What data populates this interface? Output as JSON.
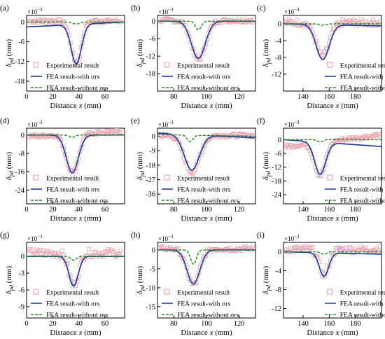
{
  "colors": {
    "experimental": "#e89aa6",
    "with_rs": "#1f3f9e",
    "without_rs": "#1e8c1e"
  },
  "chart_data": [
    {
      "panel": "(a)",
      "type": "line",
      "xlim": [
        0,
        75
      ],
      "ylim": [
        -21,
        2
      ],
      "xticks": [
        0,
        20,
        40,
        60
      ],
      "yticks": [
        0,
        -6,
        -12,
        -18
      ],
      "xlabel": "Distance x (mm)",
      "ylabel": "δpd (mm)",
      "y_multiplier": "×10−3",
      "legend_position": "bottom-left",
      "series": [
        {
          "name": "Experimental result",
          "type": "scatter",
          "center": 38,
          "depth": -12.8,
          "width": 5.5,
          "x_range": [
            2,
            72
          ],
          "baseline_slope": 0,
          "offset": 0.3,
          "noise": 0.6
        },
        {
          "name": "FEA result-with σrs",
          "type": "line",
          "center": 38,
          "depth": -12.0,
          "width": 5.5,
          "x_range": [
            0,
            75
          ],
          "baseline_start": -1.5,
          "baseline_end": 0
        },
        {
          "name": "FEA result-without σrs",
          "type": "line",
          "style": "dashed",
          "center": 38,
          "depth": -0.6,
          "width": 4,
          "x_range": [
            0,
            75
          ],
          "baseline_start": 0,
          "baseline_end": 0
        }
      ]
    },
    {
      "panel": "(b)",
      "type": "line",
      "xlim": [
        70,
        130
      ],
      "ylim": [
        -24,
        2
      ],
      "xticks": [
        80,
        100,
        120
      ],
      "yticks": [
        0,
        -6,
        -12,
        -18
      ],
      "xlabel": "Distance x (mm)",
      "ylabel": "δpd (mm)",
      "y_multiplier": "×10−3",
      "legend_position": "bottom-left",
      "series": [
        {
          "name": "Experimental result",
          "type": "scatter",
          "center": 95,
          "depth": -13.5,
          "width": 6,
          "x_range": [
            71,
            129
          ],
          "baseline_slope": 0,
          "offset": 0.3,
          "noise": 0.7
        },
        {
          "name": "FEA result-with σrs",
          "type": "line",
          "center": 95,
          "depth": -12.8,
          "width": 6,
          "x_range": [
            70,
            130
          ],
          "baseline_start": 0,
          "baseline_end": 0
        },
        {
          "name": "FEA result-without σrs",
          "type": "line",
          "style": "dashed",
          "center": 95,
          "depth": -3.0,
          "width": 2.5,
          "x_range": [
            70,
            130
          ],
          "baseline_start": 0,
          "baseline_end": 0
        }
      ]
    },
    {
      "panel": "(c)",
      "type": "line",
      "xlim": [
        125,
        200
      ],
      "ylim": [
        -16,
        2
      ],
      "xticks": [
        140,
        160,
        180
      ],
      "yticks": [
        0,
        -4,
        -8,
        -12
      ],
      "xlabel": "Distance x (mm)",
      "ylabel": "δpd (mm)",
      "y_multiplier": "×10−3",
      "legend_position": "bottom-right",
      "series": [
        {
          "name": "Experimental result",
          "type": "scatter",
          "center": 155,
          "depth": -8.0,
          "width": 7,
          "x_range": [
            126,
            199
          ],
          "baseline_slope": 0,
          "offset": 0.3,
          "noise": 0.8
        },
        {
          "name": "FEA result-with σrs",
          "type": "line",
          "center": 155,
          "depth": -8.3,
          "width": 7,
          "x_range": [
            125,
            200
          ],
          "baseline_start": 0,
          "baseline_end": -0.5
        },
        {
          "name": "FEA result-without σrs",
          "type": "line",
          "style": "dashed",
          "center": 155,
          "depth": -0.3,
          "width": 4,
          "x_range": [
            125,
            200
          ],
          "baseline_start": 0,
          "baseline_end": 0
        }
      ]
    },
    {
      "panel": "(d)",
      "type": "line",
      "xlim": [
        0,
        75
      ],
      "ylim": [
        -30,
        3
      ],
      "xticks": [
        0,
        20,
        40,
        60
      ],
      "yticks": [
        0,
        -8,
        -16,
        -24
      ],
      "xlabel": "Distance x (mm)",
      "ylabel": "δpd (mm)",
      "y_multiplier": "×10−3",
      "legend_position": "bottom-left",
      "series": [
        {
          "name": "Experimental result",
          "type": "scatter",
          "center": 35,
          "depth": -17.0,
          "width": 6.5,
          "x_range": [
            2,
            72
          ],
          "baseline_slope": 0.03,
          "offset": 0.5,
          "noise": 0.8
        },
        {
          "name": "FEA result-with σrs",
          "type": "line",
          "center": 35,
          "depth": -16.5,
          "width": 6.5,
          "x_range": [
            0,
            75
          ],
          "baseline_start": 0,
          "baseline_end": 0
        },
        {
          "name": "FEA result-without σrs",
          "type": "line",
          "style": "dashed",
          "center": 35,
          "depth": -1.0,
          "width": 3,
          "x_range": [
            0,
            75
          ],
          "baseline_start": 0,
          "baseline_end": 0
        }
      ]
    },
    {
      "panel": "(e)",
      "type": "line",
      "xlim": [
        70,
        130
      ],
      "ylim": [
        -42,
        5
      ],
      "xticks": [
        80,
        100,
        120
      ],
      "yticks": [
        0,
        -9,
        -18,
        -27,
        -36
      ],
      "xlabel": "Distance x (mm)",
      "ylabel": "δpd (mm)",
      "y_multiplier": "×10−3",
      "legend_position": "bottom-left",
      "series": [
        {
          "name": "Experimental result",
          "type": "scatter",
          "center": 91,
          "depth": -23.0,
          "width": 6.5,
          "x_range": [
            71,
            129
          ],
          "baseline_slope": 0,
          "offset": 0.5,
          "noise": 1.0
        },
        {
          "name": "FEA result-with σrs",
          "type": "line",
          "center": 91,
          "depth": -22.0,
          "width": 6.5,
          "x_range": [
            70,
            130
          ],
          "baseline_start": 2,
          "baseline_end": -1
        },
        {
          "name": "FEA result-without σrs",
          "type": "line",
          "style": "dashed",
          "center": 90,
          "depth": -4.0,
          "width": 2.5,
          "x_range": [
            70,
            130
          ],
          "baseline_start": 1,
          "baseline_end": 0
        }
      ]
    },
    {
      "panel": "(f)",
      "type": "line",
      "xlim": [
        125,
        200
      ],
      "ylim": [
        -28,
        5
      ],
      "xticks": [
        140,
        160,
        180
      ],
      "yticks": [
        0,
        -6,
        -12,
        -18,
        -24
      ],
      "xlabel": "Distance x (mm)",
      "ylabel": "δpd (mm)",
      "y_multiplier": "×10−3",
      "legend_position": "bottom-right",
      "series": [
        {
          "name": "Experimental result",
          "type": "scatter",
          "center": 153,
          "depth": -14.5,
          "width": 6,
          "x_range": [
            126,
            199
          ],
          "baseline_slope": 0.07,
          "offset": -0.5,
          "noise": 0.8
        },
        {
          "name": "FEA result-with σrs",
          "type": "line",
          "center": 153,
          "depth": -14.0,
          "width": 6,
          "x_range": [
            125,
            200
          ],
          "baseline_start": 0,
          "baseline_end": -3
        },
        {
          "name": "FEA result-without σrs",
          "type": "line",
          "style": "dashed",
          "center": 153,
          "depth": -1.0,
          "width": 3,
          "x_range": [
            125,
            200
          ],
          "baseline_start": 0,
          "baseline_end": 0
        }
      ]
    },
    {
      "panel": "(g)",
      "type": "line",
      "xlim": [
        0,
        75
      ],
      "ylim": [
        -11,
        2.5
      ],
      "xticks": [
        0,
        20,
        40,
        60
      ],
      "yticks": [
        0,
        -3,
        -6,
        -9
      ],
      "xlabel": "Distance x (mm)",
      "ylabel": "δpd (mm)",
      "y_multiplier": "×10−3",
      "legend_position": "bottom-left",
      "series": [
        {
          "name": "Experimental result",
          "type": "scatter",
          "center": 36,
          "depth": -5.8,
          "width": 5,
          "x_range": [
            2,
            72
          ],
          "baseline_slope": 0,
          "offset": 0.6,
          "noise": 0.7
        },
        {
          "name": "FEA result-with σrs",
          "type": "line",
          "center": 36,
          "depth": -5.3,
          "width": 5,
          "x_range": [
            0,
            75
          ],
          "baseline_start": 0,
          "baseline_end": 0
        },
        {
          "name": "FEA result-without σrs",
          "type": "line",
          "style": "dashed",
          "center": 36,
          "depth": -0.7,
          "width": 3,
          "x_range": [
            0,
            75
          ],
          "baseline_start": 0,
          "baseline_end": 0
        }
      ]
    },
    {
      "panel": "(h)",
      "type": "line",
      "xlim": [
        70,
        130
      ],
      "ylim": [
        -18,
        2
      ],
      "xticks": [
        80,
        100,
        120
      ],
      "yticks": [
        0,
        -5,
        -10,
        -15
      ],
      "xlabel": "Distance x (mm)",
      "ylabel": "δpd (mm)",
      "y_multiplier": "×10−3",
      "legend_position": "bottom-left",
      "series": [
        {
          "name": "Experimental result",
          "type": "scatter",
          "center": 92,
          "depth": -9.5,
          "width": 5.5,
          "x_range": [
            71,
            129
          ],
          "baseline_slope": 0,
          "offset": 0.3,
          "noise": 0.6
        },
        {
          "name": "FEA result-with σrs",
          "type": "line",
          "center": 92,
          "depth": -9.0,
          "width": 5.5,
          "x_range": [
            70,
            130
          ],
          "baseline_start": 0,
          "baseline_end": 0
        },
        {
          "name": "FEA result-without σrs",
          "type": "line",
          "style": "dashed",
          "center": 92,
          "depth": -3.8,
          "width": 2.5,
          "x_range": [
            70,
            130
          ],
          "baseline_start": 0,
          "baseline_end": 0
        }
      ]
    },
    {
      "panel": "(i)",
      "type": "line",
      "xlim": [
        125,
        200
      ],
      "ylim": [
        -14,
        2
      ],
      "xticks": [
        140,
        160,
        180
      ],
      "yticks": [
        0,
        -4,
        -8,
        -12
      ],
      "xlabel": "Distance x (mm)",
      "ylabel": "δpd (mm)",
      "y_multiplier": "×10−3",
      "legend_position": "bottom-right",
      "series": [
        {
          "name": "Experimental result",
          "type": "scatter",
          "center": 156,
          "depth": -5.5,
          "width": 5,
          "x_range": [
            126,
            199
          ],
          "baseline_slope": 0,
          "offset": 0.5,
          "noise": 0.7
        },
        {
          "name": "FEA result-with σrs",
          "type": "line",
          "center": 156,
          "depth": -5.0,
          "width": 5,
          "x_range": [
            125,
            200
          ],
          "baseline_start": 0,
          "baseline_end": -0.5
        },
        {
          "name": "FEA result-without σrs",
          "type": "line",
          "style": "dashed",
          "center": 156,
          "depth": -0.5,
          "width": 3,
          "x_range": [
            125,
            200
          ],
          "baseline_start": 0,
          "baseline_end": 0
        }
      ]
    }
  ]
}
